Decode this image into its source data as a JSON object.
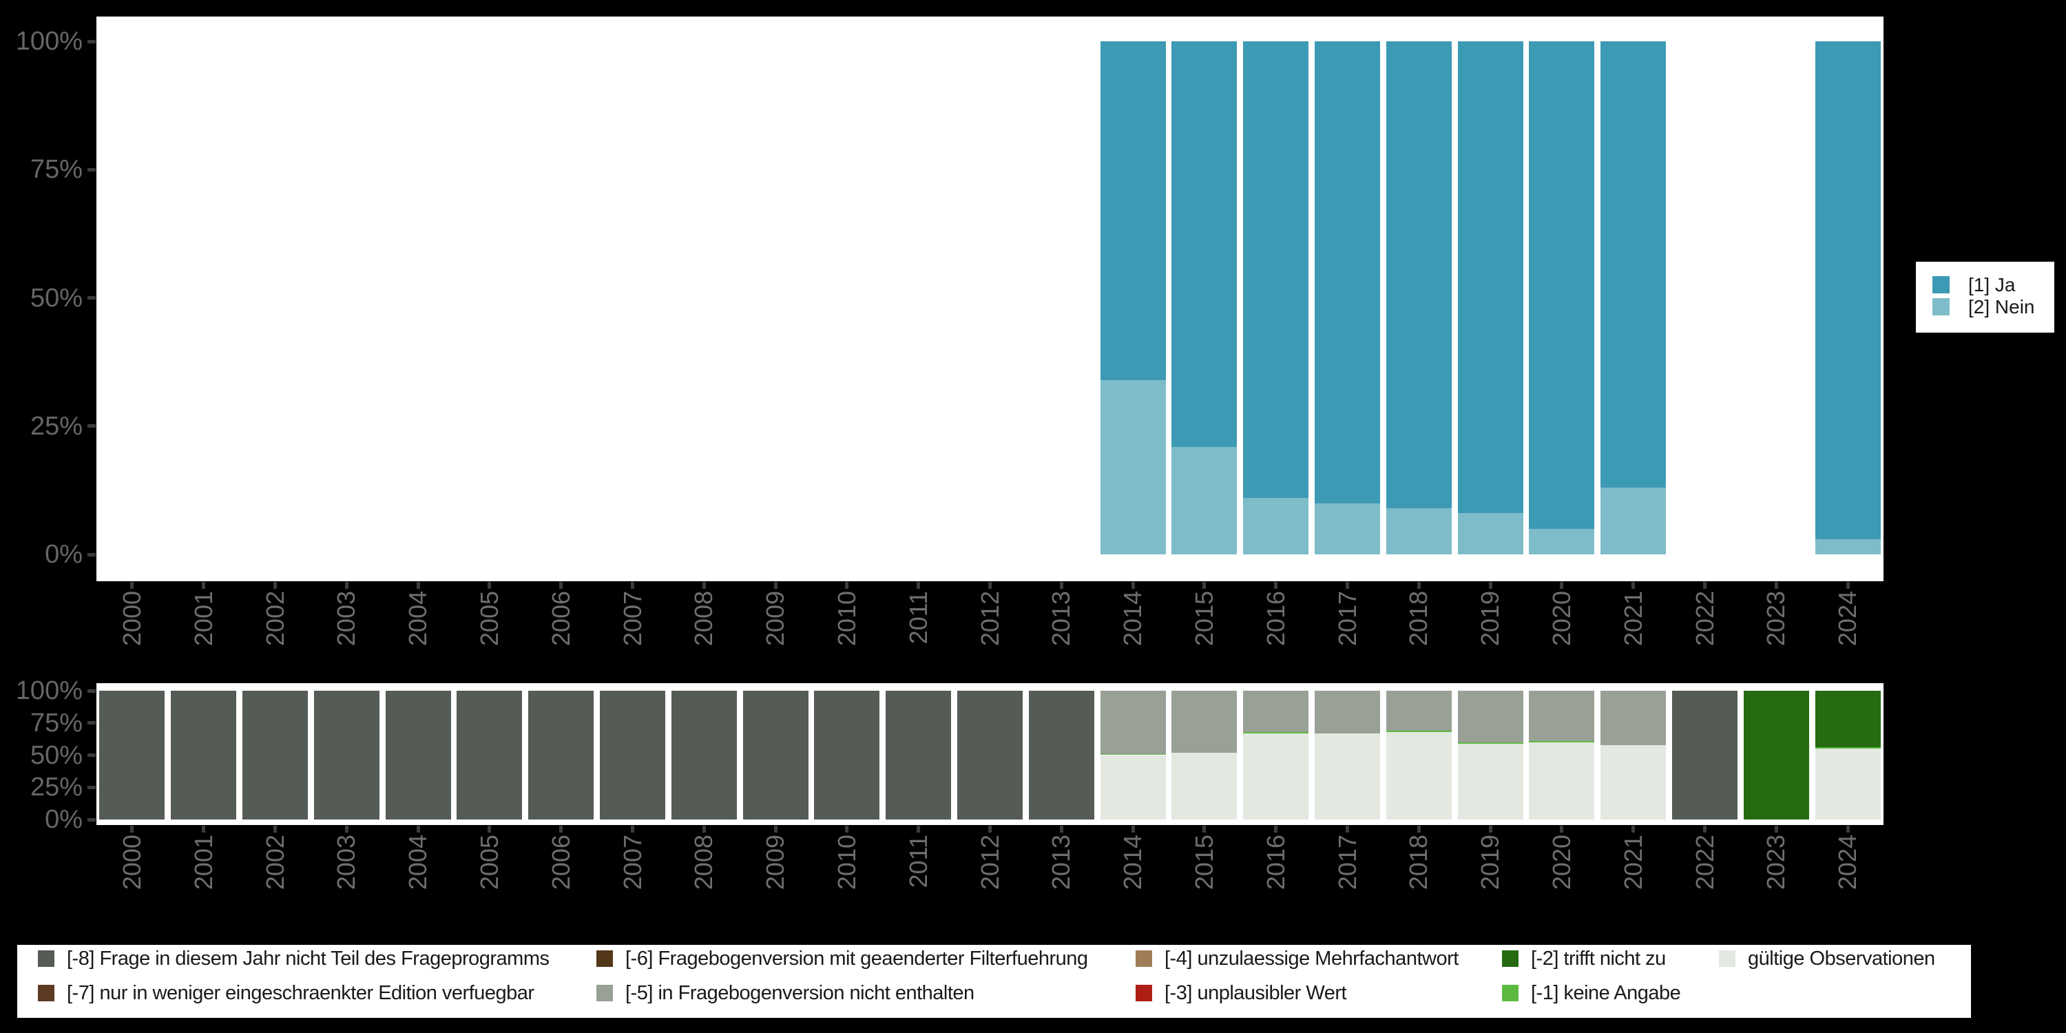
{
  "background": "#000000",
  "colors": {
    "panel": "#ffffff",
    "axis_text": "#666666",
    "axis_text_x": "#6e6e6e",
    "tick": "#3c3c3c",
    "legend_text": "#1a1a1a",
    "ja": "#3d9ab4",
    "nein": "#7ebcca",
    "m8": "#555b55",
    "m7": "#5d3b22",
    "m6": "#523818",
    "m5": "#99a096",
    "m4": "#a07d57",
    "m3": "#ae1e14",
    "m2": "#266b12",
    "m1": "#5cba40",
    "valid": "#e3e8e1"
  },
  "chart_data": [
    {
      "type": "bar",
      "stacked": true,
      "title": "",
      "xlabel": "",
      "ylabel": "",
      "categories": [
        "2000",
        "2001",
        "2002",
        "2003",
        "2004",
        "2005",
        "2006",
        "2007",
        "2008",
        "2009",
        "2010",
        "2011",
        "2012",
        "2013",
        "2014",
        "2015",
        "2016",
        "2017",
        "2018",
        "2019",
        "2020",
        "2021",
        "2022",
        "2023",
        "2024"
      ],
      "y_ticks": [
        {
          "label": "0%",
          "pct": 0
        },
        {
          "label": "25%",
          "pct": 25
        },
        {
          "label": "50%",
          "pct": 50
        },
        {
          "label": "75%",
          "pct": 75
        },
        {
          "label": "100%",
          "pct": 100
        }
      ],
      "ylim": [
        0,
        100
      ],
      "grid": false,
      "series": [
        {
          "key": "nein",
          "name": "[2] Nein",
          "values": [
            null,
            null,
            null,
            null,
            null,
            null,
            null,
            null,
            null,
            null,
            null,
            null,
            null,
            null,
            34,
            21,
            11,
            10,
            9,
            8,
            5,
            13,
            null,
            null,
            3
          ]
        },
        {
          "key": "ja",
          "name": "[1] Ja",
          "values": [
            null,
            null,
            null,
            null,
            null,
            null,
            null,
            null,
            null,
            null,
            null,
            null,
            null,
            null,
            66,
            79,
            89,
            90,
            91,
            92,
            95,
            87,
            null,
            null,
            97
          ]
        }
      ],
      "legend": {
        "position": "right",
        "items": [
          {
            "key": "ja",
            "label": "[1] Ja"
          },
          {
            "key": "nein",
            "label": "[2] Nein"
          }
        ]
      }
    },
    {
      "type": "bar",
      "stacked": true,
      "title": "",
      "xlabel": "",
      "ylabel": "",
      "categories": [
        "2000",
        "2001",
        "2002",
        "2003",
        "2004",
        "2005",
        "2006",
        "2007",
        "2008",
        "2009",
        "2010",
        "2011",
        "2012",
        "2013",
        "2014",
        "2015",
        "2016",
        "2017",
        "2018",
        "2019",
        "2020",
        "2021",
        "2022",
        "2023",
        "2024"
      ],
      "y_ticks": [
        {
          "label": "0%",
          "pct": 0
        },
        {
          "label": "25%",
          "pct": 25
        },
        {
          "label": "50%",
          "pct": 50
        },
        {
          "label": "75%",
          "pct": 75
        },
        {
          "label": "100%",
          "pct": 100
        }
      ],
      "ylim": [
        0,
        100
      ],
      "grid": false,
      "series": [
        {
          "key": "valid",
          "name": "gültige Observationen",
          "values": [
            0,
            0,
            0,
            0,
            0,
            0,
            0,
            0,
            0,
            0,
            0,
            0,
            0,
            0,
            50,
            52,
            67,
            67,
            68,
            59,
            60,
            58,
            0,
            0,
            55
          ]
        },
        {
          "key": "m1",
          "name": "[-1] keine Angabe",
          "values": [
            0,
            0,
            0,
            0,
            0,
            0,
            0,
            0,
            0,
            0,
            0,
            0,
            0,
            0,
            1,
            0,
            1,
            0,
            1,
            1,
            1,
            0,
            0,
            0,
            1
          ]
        },
        {
          "key": "m5",
          "name": "[-5] in Fragebogenversion nicht enthalten",
          "values": [
            0,
            0,
            0,
            0,
            0,
            0,
            0,
            0,
            0,
            0,
            0,
            0,
            0,
            0,
            49,
            48,
            32,
            33,
            31,
            40,
            39,
            42,
            0,
            0,
            0
          ]
        },
        {
          "key": "m2",
          "name": "[-2] trifft nicht zu",
          "values": [
            0,
            0,
            0,
            0,
            0,
            0,
            0,
            0,
            0,
            0,
            0,
            0,
            0,
            0,
            0,
            0,
            0,
            0,
            0,
            0,
            0,
            0,
            0,
            100,
            44
          ]
        },
        {
          "key": "m8",
          "name": "[-8] Frage in diesem Jahr nicht Teil des Frageprogramms",
          "values": [
            100,
            100,
            100,
            100,
            100,
            100,
            100,
            100,
            100,
            100,
            100,
            100,
            100,
            100,
            0,
            0,
            0,
            0,
            0,
            0,
            0,
            0,
            100,
            0,
            0
          ]
        }
      ],
      "legend": {
        "position": "bottom",
        "items": [
          {
            "key": "m8",
            "label": "[-8] Frage in diesem Jahr nicht Teil des Frageprogramms"
          },
          {
            "key": "m7",
            "label": "[-7] nur in weniger eingeschraenkter Edition verfuegbar"
          },
          {
            "key": "m6",
            "label": "[-6] Fragebogenversion mit geaenderter Filterfuehrung"
          },
          {
            "key": "m5",
            "label": "[-5] in Fragebogenversion nicht enthalten"
          },
          {
            "key": "m4",
            "label": "[-4] unzulaessige Mehrfachantwort"
          },
          {
            "key": "m3",
            "label": "[-3] unplausibler Wert"
          },
          {
            "key": "m2",
            "label": "[-2] trifft nicht zu"
          },
          {
            "key": "m1",
            "label": "[-1] keine Angabe"
          },
          {
            "key": "valid",
            "label": "gültige Observationen"
          }
        ]
      }
    }
  ]
}
